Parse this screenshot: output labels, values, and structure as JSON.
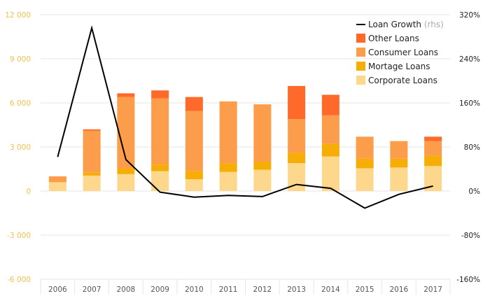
{
  "chart_data": {
    "type": "bar",
    "title": "",
    "xlabel": "",
    "ylabel": "",
    "ylabel_right": "",
    "categories": [
      "2006",
      "2007",
      "2008",
      "2009",
      "2010",
      "2011",
      "2012",
      "2013",
      "2014",
      "2015",
      "2016",
      "2017"
    ],
    "ylim": [
      -6000,
      12000
    ],
    "yticks": [
      -6000,
      -3000,
      0,
      3000,
      6000,
      9000,
      12000
    ],
    "ytick_labels": [
      "-6 000",
      "-3 000",
      "0",
      "3 000",
      "6 000",
      "9 000",
      "12 000"
    ],
    "y2lim": [
      -160,
      320
    ],
    "y2ticks": [
      -160,
      -80,
      0,
      80,
      160,
      240,
      320
    ],
    "y2tick_labels": [
      "-160%",
      "-80%",
      "0%",
      "80%",
      "160%",
      "240%",
      "320%"
    ],
    "series": [
      {
        "name": "Corporate Loans",
        "kind": "bar",
        "color": "#fdd78b",
        "values": [
          600,
          1050,
          1150,
          1350,
          800,
          1300,
          1450,
          1900,
          2350,
          1550,
          1600,
          1700
        ]
      },
      {
        "name": "Mortage Loans",
        "kind": "bar",
        "color": "#f6ae06",
        "values": [
          0,
          200,
          400,
          450,
          550,
          600,
          550,
          700,
          850,
          650,
          600,
          700
        ]
      },
      {
        "name": "Consumer Loans",
        "kind": "bar",
        "color": "#fb9d4a",
        "values": [
          400,
          2850,
          4850,
          4500,
          4100,
          4200,
          3900,
          2300,
          1950,
          1500,
          1200,
          1000
        ]
      },
      {
        "name": "Other Loans",
        "kind": "bar",
        "color": "#ff6a2a",
        "values": [
          0,
          100,
          250,
          550,
          950,
          0,
          0,
          2250,
          1400,
          0,
          0,
          300
        ]
      },
      {
        "name": "Loan Growth",
        "note": "(rhs)",
        "kind": "line",
        "axis": "right",
        "color": "#000000",
        "values": [
          62,
          296,
          57,
          -2,
          -11,
          -8,
          -10,
          12,
          5,
          -31,
          -6,
          9
        ]
      }
    ],
    "legend": {
      "position": "top-right",
      "order": [
        "Loan Growth",
        "Other Loans",
        "Consumer Loans",
        "Mortage Loans",
        "Corporate Loans"
      ]
    },
    "grid": true
  }
}
